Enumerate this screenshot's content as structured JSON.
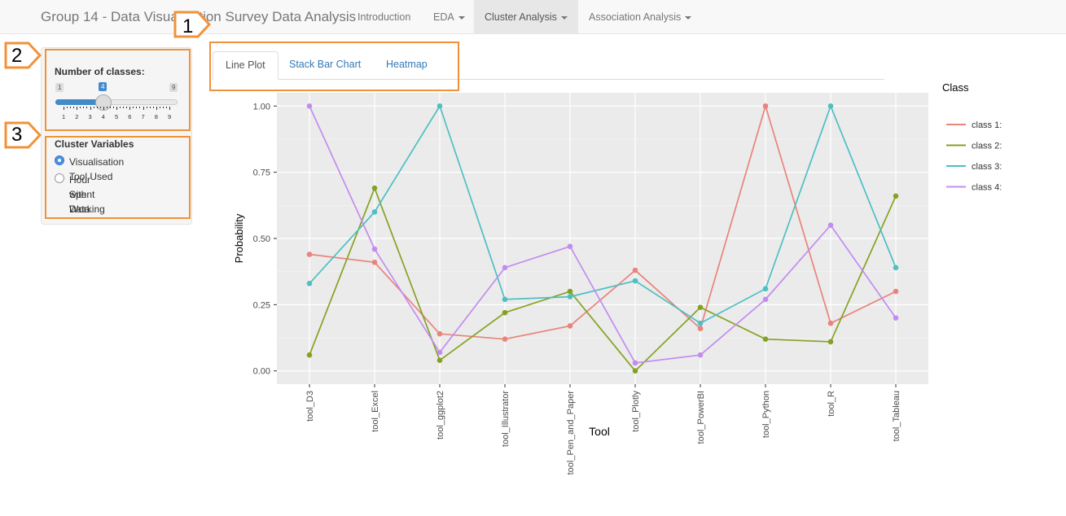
{
  "navbar": {
    "brand": "Group 14 - Data Visualisation Survey Data Analysis",
    "items": [
      {
        "label": "Introduction",
        "dropdown": false,
        "active": false
      },
      {
        "label": "EDA",
        "dropdown": true,
        "active": false
      },
      {
        "label": "Cluster Analysis",
        "dropdown": true,
        "active": true
      },
      {
        "label": "Association Analysis",
        "dropdown": true,
        "active": false
      }
    ]
  },
  "sidebar": {
    "classes_label": "Number of classes:",
    "slider": {
      "min": "1",
      "max": "9",
      "value": "4",
      "ticks": [
        "1",
        "2",
        "3",
        "4",
        "5",
        "6",
        "7",
        "8",
        "9"
      ]
    },
    "cluster_label": "Cluster Variables",
    "options": [
      {
        "label": "Visualisation Tool Used",
        "checked": true
      },
      {
        "label": "Hour Spent Working",
        "label2": "with Data",
        "checked": false
      }
    ]
  },
  "tabs": [
    {
      "label": "Line Plot",
      "active": true
    },
    {
      "label": "Stack Bar Chart",
      "active": false
    },
    {
      "label": "Heatmap",
      "active": false
    }
  ],
  "annotations": [
    "1",
    "2",
    "3"
  ],
  "colors": {
    "annotation": "#f0923a",
    "panel_bg": "#ebebeb",
    "class1": "#e9837b",
    "class2": "#84a222",
    "class3": "#4ebfc3",
    "class4": "#c38cf0"
  },
  "chart_data": {
    "type": "line",
    "xlabel": "Tool",
    "ylabel": "Probability",
    "legend_title": "Class",
    "legend_position": "right",
    "grid": true,
    "ylim": [
      -0.05,
      1.05
    ],
    "yticks": [
      "0.00",
      "0.25",
      "0.50",
      "0.75",
      "1.00"
    ],
    "categories": [
      "tool_D3",
      "tool_Excel",
      "tool_ggplot2",
      "tool_Illustrator",
      "tool_Pen_and_Paper",
      "tool_Plotly",
      "tool_PowerBI",
      "tool_Python",
      "tool_R",
      "tool_Tableau"
    ],
    "series": [
      {
        "name": "class 1:",
        "color": "#e9837b",
        "values": [
          0.44,
          0.41,
          0.14,
          0.12,
          0.17,
          0.38,
          0.16,
          1.0,
          0.18,
          0.3
        ]
      },
      {
        "name": "class 2:",
        "color": "#84a222",
        "values": [
          0.06,
          0.69,
          0.04,
          0.22,
          0.3,
          0.0,
          0.24,
          0.12,
          0.11,
          0.66
        ]
      },
      {
        "name": "class 3:",
        "color": "#4ebfc3",
        "values": [
          0.33,
          0.6,
          1.0,
          0.27,
          0.28,
          0.34,
          0.18,
          0.31,
          1.0,
          0.39
        ]
      },
      {
        "name": "class 4:",
        "color": "#c38cf0",
        "values": [
          1.0,
          0.46,
          0.07,
          0.39,
          0.47,
          0.03,
          0.06,
          0.27,
          0.55,
          0.2
        ]
      }
    ]
  }
}
